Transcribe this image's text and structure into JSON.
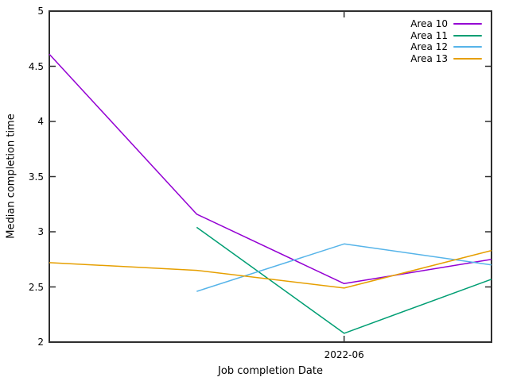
{
  "chart_data": {
    "type": "line",
    "title": "",
    "xlabel": "Job completion Date",
    "ylabel": "Median completion time",
    "ylim": [
      2,
      5
    ],
    "yticks": [
      2,
      2.5,
      3,
      3.5,
      4,
      4.5,
      5
    ],
    "ytick_labels": [
      "2",
      "2.5",
      "3",
      "3.5",
      "4",
      "4.5",
      "5"
    ],
    "x_point_count": 4,
    "xticks": [
      {
        "position_index": 2,
        "label": "2022-06"
      }
    ],
    "grid": false,
    "legend_position": "top-right",
    "border_color": "#2e2e2e",
    "series": [
      {
        "name": "Area 10",
        "color": "#9400D3",
        "values": [
          4.61,
          3.16,
          2.53,
          2.75
        ]
      },
      {
        "name": "Area 11",
        "color": "#009E73",
        "values": [
          null,
          3.04,
          2.08,
          2.57
        ]
      },
      {
        "name": "Area 12",
        "color": "#56B4E9",
        "values": [
          null,
          2.46,
          2.89,
          2.7
        ]
      },
      {
        "name": "Area 13",
        "color": "#E69F00",
        "values": [
          2.72,
          2.65,
          2.49,
          2.83
        ]
      }
    ]
  }
}
